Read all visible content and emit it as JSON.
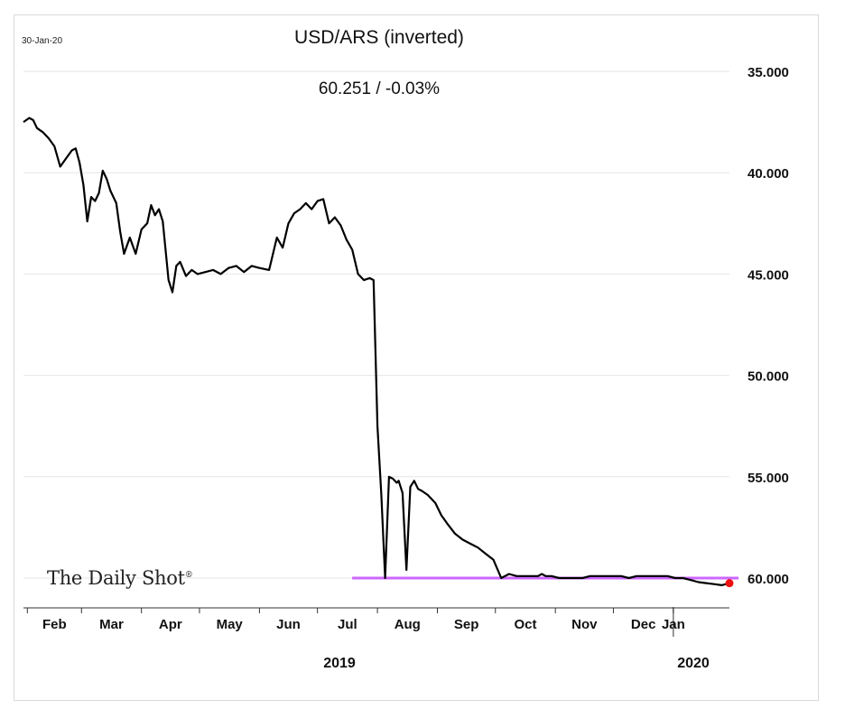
{
  "header": {
    "date_stamp": "30-Jan-20",
    "brand": "The Daily Shot",
    "brand_mark": "®"
  },
  "chart_data": {
    "type": "line",
    "title": "USD/ARS (inverted)",
    "subtitle": "60.251  /  -0.03%",
    "y_inverted": true,
    "ylim": [
      34.0,
      61.3
    ],
    "y_ticks": [
      35,
      40,
      45,
      50,
      55,
      60
    ],
    "y_tick_labels": [
      "35.000",
      "40.000",
      "45.000",
      "50.000",
      "55.000",
      "60.000"
    ],
    "month_labels": [
      "Feb",
      "Mar",
      "Apr",
      "May",
      "Jun",
      "Jul",
      "Aug",
      "Sep",
      "Oct",
      "Nov",
      "Dec",
      "Jan"
    ],
    "year_labels": [
      "2019",
      "2020"
    ],
    "grid": true,
    "series": [
      {
        "color": "#000000",
        "x": [
          "2019-01-30",
          "2019-02-02",
          "2019-02-04",
          "2019-02-06",
          "2019-02-09",
          "2019-02-12",
          "2019-02-15",
          "2019-02-18",
          "2019-02-21",
          "2019-02-24",
          "2019-02-26",
          "2019-02-28",
          "2019-03-02",
          "2019-03-04",
          "2019-03-06",
          "2019-03-08",
          "2019-03-10",
          "2019-03-12",
          "2019-03-14",
          "2019-03-16",
          "2019-03-19",
          "2019-03-21",
          "2019-03-23",
          "2019-03-26",
          "2019-03-29",
          "2019-04-01",
          "2019-04-04",
          "2019-04-06",
          "2019-04-08",
          "2019-04-10",
          "2019-04-12",
          "2019-04-15",
          "2019-04-17",
          "2019-04-19",
          "2019-04-21",
          "2019-04-24",
          "2019-04-27",
          "2019-04-30",
          "2019-05-04",
          "2019-05-08",
          "2019-05-12",
          "2019-05-16",
          "2019-05-20",
          "2019-05-24",
          "2019-05-28",
          "2019-06-01",
          "2019-06-06",
          "2019-06-10",
          "2019-06-13",
          "2019-06-16",
          "2019-06-19",
          "2019-06-22",
          "2019-06-25",
          "2019-06-28",
          "2019-07-01",
          "2019-07-04",
          "2019-07-07",
          "2019-07-10",
          "2019-07-13",
          "2019-07-16",
          "2019-07-19",
          "2019-07-22",
          "2019-07-25",
          "2019-07-28",
          "2019-07-30",
          "2019-08-01",
          "2019-08-03",
          "2019-08-05",
          "2019-08-07",
          "2019-08-09",
          "2019-08-11",
          "2019-08-12",
          "2019-08-14",
          "2019-08-16",
          "2019-08-18",
          "2019-08-20",
          "2019-08-22",
          "2019-08-24",
          "2019-08-27",
          "2019-08-29",
          "2019-08-31",
          "2019-09-03",
          "2019-09-06",
          "2019-09-10",
          "2019-09-14",
          "2019-09-18",
          "2019-09-22",
          "2019-09-26",
          "2019-09-30",
          "2019-10-04",
          "2019-10-08",
          "2019-10-12",
          "2019-10-16",
          "2019-10-20",
          "2019-10-23",
          "2019-10-25",
          "2019-10-27",
          "2019-10-30",
          "2019-11-03",
          "2019-11-07",
          "2019-11-11",
          "2019-11-15",
          "2019-11-19",
          "2019-11-23",
          "2019-11-27",
          "2019-12-01",
          "2019-12-05",
          "2019-12-09",
          "2019-12-13",
          "2019-12-17",
          "2019-12-21",
          "2019-12-25",
          "2019-12-29",
          "2020-01-02",
          "2020-01-06",
          "2020-01-10",
          "2020-01-14",
          "2020-01-18",
          "2020-01-22",
          "2020-01-26",
          "2020-01-30"
        ],
        "values": [
          37.5,
          37.3,
          37.4,
          37.8,
          38.0,
          38.3,
          38.7,
          39.7,
          39.3,
          38.9,
          38.8,
          39.5,
          40.6,
          42.4,
          41.2,
          41.4,
          41.0,
          39.9,
          40.3,
          40.9,
          41.5,
          42.9,
          44.0,
          43.2,
          44.0,
          42.8,
          42.5,
          41.6,
          42.1,
          41.8,
          42.4,
          45.3,
          45.9,
          44.6,
          44.4,
          45.1,
          44.8,
          45.0,
          44.9,
          44.8,
          45.0,
          44.7,
          44.6,
          44.9,
          44.6,
          44.7,
          44.8,
          43.2,
          43.7,
          42.5,
          42.0,
          41.8,
          41.5,
          41.8,
          41.4,
          41.3,
          42.5,
          42.2,
          42.6,
          43.3,
          43.8,
          45.0,
          45.3,
          45.2,
          45.3,
          52.5,
          55.9,
          60.0,
          55.0,
          55.1,
          55.3,
          55.2,
          55.8,
          59.6,
          55.5,
          55.2,
          55.6,
          55.7,
          55.9,
          56.1,
          56.3,
          56.9,
          57.3,
          57.8,
          58.1,
          58.3,
          58.5,
          58.8,
          59.1,
          60.0,
          59.8,
          59.9,
          59.9,
          59.9,
          59.9,
          59.8,
          59.9,
          59.9,
          60.0,
          60.0,
          60.0,
          60.0,
          59.9,
          59.9,
          59.9,
          59.9,
          59.9,
          60.0,
          59.9,
          59.9,
          59.9,
          59.9,
          59.9,
          60.0,
          60.0,
          60.1,
          60.2,
          60.25,
          60.3,
          60.35,
          60.251
        ]
      }
    ],
    "highlight_line": {
      "value": 60.0,
      "from": "2019-08-01",
      "to": "2020-01-30",
      "color": "#cc66ff"
    },
    "last_point": {
      "x": "2020-01-30",
      "value": 60.251,
      "color": "#ee1111"
    }
  }
}
